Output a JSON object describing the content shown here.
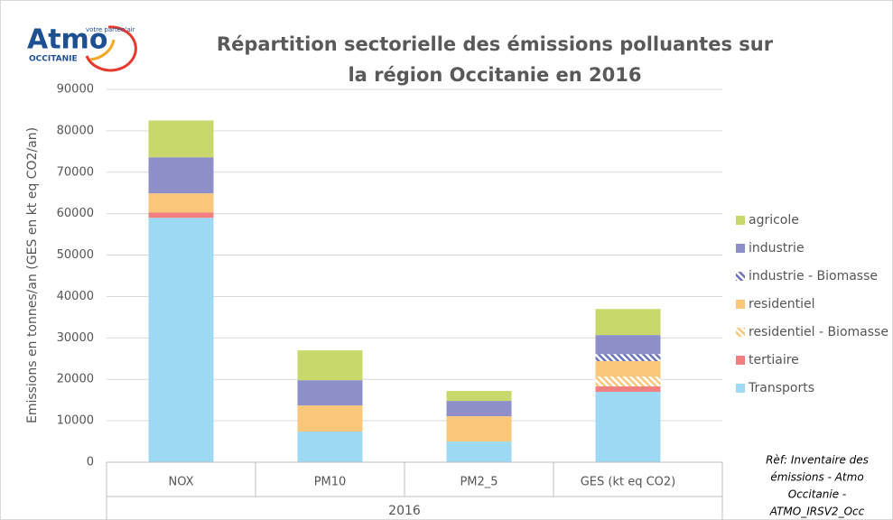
{
  "logo": {
    "name": "Atmo",
    "tagline": "votre parten'air",
    "region": "OCCITANIE"
  },
  "chart_data": {
    "type": "stacked-bar",
    "title": [
      "Répartition sectorielle des émissions polluantes sur",
      "la région Occitanie en 2016"
    ],
    "y_label": "Emissions en tonnes/an (GES en kt eq CO2/an)",
    "x_label": "2016",
    "categories": [
      "NOX",
      "PM10",
      "PM2_5",
      "GES (kt eq CO2)"
    ],
    "series": [
      {
        "name": "Transports",
        "color": "#9dd9f3",
        "pattern": "solid",
        "values": [
          59000,
          7400,
          5000,
          17000
        ]
      },
      {
        "name": "tertiaire",
        "color": "#f08080",
        "pattern": "solid",
        "values": [
          1300,
          0,
          0,
          1300
        ]
      },
      {
        "name": "residentiel - Biomasse",
        "color": "#f9c67a",
        "pattern": "hatch",
        "values": [
          0,
          0,
          0,
          2400
        ]
      },
      {
        "name": "residentiel",
        "color": "#f9c67a",
        "pattern": "solid",
        "values": [
          4600,
          6300,
          6100,
          3700
        ]
      },
      {
        "name": "industrie - Biomasse",
        "color": "#6b74b8",
        "pattern": "hatch",
        "values": [
          0,
          0,
          0,
          1700
        ]
      },
      {
        "name": "industrie",
        "color": "#8c8fc8",
        "pattern": "solid",
        "values": [
          8700,
          6100,
          3700,
          4600
        ]
      },
      {
        "name": "agricole",
        "color": "#c8d86a",
        "pattern": "solid",
        "values": [
          8900,
          7200,
          2400,
          6300
        ]
      }
    ],
    "ylim": [
      0,
      90000
    ],
    "yticks": [
      0,
      10000,
      20000,
      30000,
      40000,
      50000,
      60000,
      70000,
      80000,
      90000
    ],
    "grid": true,
    "legend": "right",
    "note": [
      "Rèf: Inventaire des",
      "émissions - Atmo",
      "Occitanie -",
      "ATMO_IRSV2_Occ"
    ]
  }
}
